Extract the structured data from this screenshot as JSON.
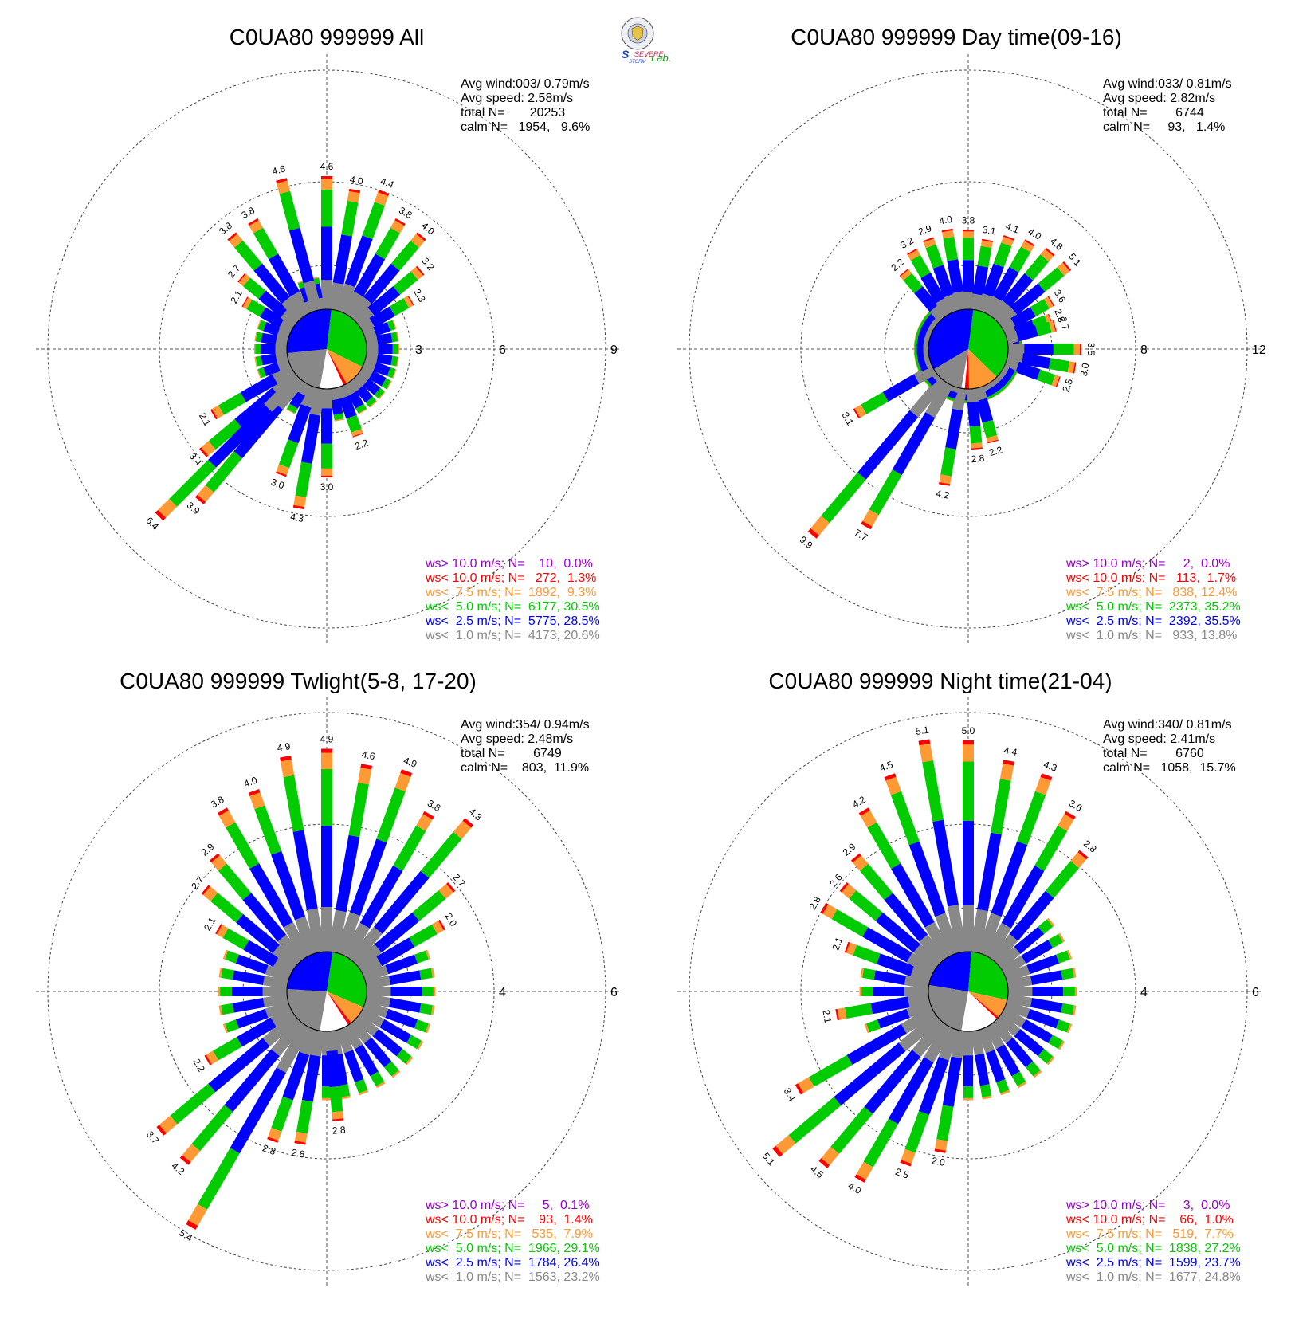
{
  "logo": {
    "top_text": "SEVERE",
    "bottom_text": "STORM",
    "lab_text": "Lab."
  },
  "colors": {
    "gt10": "#9900cc",
    "lt10": "#ff0000",
    "lt75": "#ff9933",
    "lt5": "#00cc00",
    "lt25": "#0000ff",
    "lt1": "#888888",
    "axis": "#333333"
  },
  "chart_data": [
    {
      "type": "wind-rose",
      "title": "C0UA80 999999 All",
      "rings": [
        3,
        6,
        9
      ],
      "info": [
        "Avg wind:003/ 0.79m/s",
        "Avg speed: 2.58m/s",
        "total N=       20253",
        "calm N=   1954,   9.6%"
      ],
      "legend": [
        {
          "label": "ws> 10.0 m/s; N=    10,  0.0%",
          "color": "gt10"
        },
        {
          "label": "ws< 10.0 m/s; N=   272,  1.3%",
          "color": "lt10"
        },
        {
          "label": "ws<  7.5 m/s; N=  1892,  9.3%",
          "color": "lt75"
        },
        {
          "label": "ws<  5.0 m/s; N=  6177, 30.5%",
          "color": "lt5"
        },
        {
          "label": "ws<  2.5 m/s; N=  5775, 28.5%",
          "color": "lt25"
        },
        {
          "label": "ws<  1.0 m/s; N=  4173, 20.6%",
          "color": "lt1"
        }
      ],
      "center_pie": [
        20.6,
        28.5,
        30.5,
        9.3,
        1.3,
        0.0
      ],
      "labeled_bars": [
        {
          "dir": 0,
          "len": 6.2,
          "label": "4.6"
        },
        {
          "dir": 10,
          "len": 5.8,
          "label": "4.0"
        },
        {
          "dir": 20,
          "len": 6.0,
          "label": "4.4"
        },
        {
          "dir": 30,
          "len": 5.3,
          "label": "3.8"
        },
        {
          "dir": 40,
          "len": 5.3,
          "label": "4.0"
        },
        {
          "dir": 50,
          "len": 4.4,
          "label": "3.2"
        },
        {
          "dir": 60,
          "len": 3.5,
          "label": "2.3"
        },
        {
          "dir": 160,
          "len": 3.3,
          "label": "2.2"
        },
        {
          "dir": 180,
          "len": 4.6,
          "label": "3.0"
        },
        {
          "dir": 190,
          "len": 5.8,
          "label": "4.3"
        },
        {
          "dir": 200,
          "len": 4.8,
          "label": "3.0"
        },
        {
          "dir": 220,
          "len": 7.1,
          "label": "3.9"
        },
        {
          "dir": 225,
          "len": 8.5,
          "label": "6.4"
        },
        {
          "dir": 230,
          "len": 5.8,
          "label": "3.4"
        },
        {
          "dir": 240,
          "len": 4.7,
          "label": "2.1"
        },
        {
          "dir": 300,
          "len": 3.4,
          "label": "2.1"
        },
        {
          "dir": 310,
          "len": 4.0,
          "label": "2.7"
        },
        {
          "dir": 320,
          "len": 5.3,
          "label": "3.8"
        },
        {
          "dir": 330,
          "len": 5.3,
          "label": "3.8"
        },
        {
          "dir": 345,
          "len": 6.3,
          "label": "4.6"
        }
      ]
    },
    {
      "type": "wind-rose",
      "title": "C0UA80 999999 Day time(09-16)",
      "rings": [
        4,
        8,
        12
      ],
      "info": [
        "Avg wind:033/ 0.81m/s",
        "Avg speed: 2.82m/s",
        "total N=        6744",
        "calm N=     93,   1.4%"
      ],
      "legend": [
        {
          "label": "ws> 10.0 m/s; N=     2,  0.0%",
          "color": "gt10"
        },
        {
          "label": "ws< 10.0 m/s; N=   113,  1.7%",
          "color": "lt10"
        },
        {
          "label": "ws<  7.5 m/s; N=   838, 12.4%",
          "color": "lt75"
        },
        {
          "label": "ws<  5.0 m/s; N=  2373, 35.2%",
          "color": "lt5"
        },
        {
          "label": "ws<  2.5 m/s; N=  2392, 35.5%",
          "color": "lt25"
        },
        {
          "label": "ws<  1.0 m/s; N=   933, 13.8%",
          "color": "lt1"
        }
      ],
      "center_pie": [
        13.8,
        35.5,
        35.2,
        12.4,
        1.7,
        0.0
      ],
      "labeled_bars": [
        {
          "dir": 0,
          "len": 5.7,
          "label": "3.8"
        },
        {
          "dir": 10,
          "len": 5.3,
          "label": "3.1"
        },
        {
          "dir": 20,
          "len": 5.7,
          "label": "4.1"
        },
        {
          "dir": 30,
          "len": 5.9,
          "label": "4.0"
        },
        {
          "dir": 40,
          "len": 6.1,
          "label": "4.8"
        },
        {
          "dir": 50,
          "len": 6.2,
          "label": "5.1"
        },
        {
          "dir": 60,
          "len": 4.6,
          "label": "3.6"
        },
        {
          "dir": 70,
          "len": 4.2,
          "label": "2.8"
        },
        {
          "dir": 75,
          "len": 4.3,
          "label": "2.7"
        },
        {
          "dir": 90,
          "len": 5.4,
          "label": "3.5"
        },
        {
          "dir": 100,
          "len": 5.2,
          "label": "3.0"
        },
        {
          "dir": 110,
          "len": 4.6,
          "label": "2.5"
        },
        {
          "dir": 165,
          "len": 4.6,
          "label": "2.2"
        },
        {
          "dir": 175,
          "len": 4.8,
          "label": "2.8"
        },
        {
          "dir": 190,
          "len": 6.6,
          "label": "4.2"
        },
        {
          "dir": 210,
          "len": 9.8,
          "label": "7.7"
        },
        {
          "dir": 220,
          "len": 11.6,
          "label": "9.9"
        },
        {
          "dir": 240,
          "len": 6.2,
          "label": "3.1"
        },
        {
          "dir": 320,
          "len": 4.8,
          "label": "2.2"
        },
        {
          "dir": 330,
          "len": 5.4,
          "label": "3.2"
        },
        {
          "dir": 340,
          "len": 5.6,
          "label": "2.9"
        },
        {
          "dir": 350,
          "len": 5.8,
          "label": "4.0"
        }
      ]
    },
    {
      "type": "wind-rose",
      "title": "C0UA80 999999 Twlight(5-8, 17-20)",
      "rings": [
        2,
        4,
        6
      ],
      "info": [
        "Avg wind:354/ 0.94m/s",
        "Avg speed: 2.48m/s",
        "total N=        6749",
        "calm N=    803,  11.9%"
      ],
      "legend": [
        {
          "label": "ws> 10.0 m/s; N=     5,  0.1%",
          "color": "gt10"
        },
        {
          "label": "ws< 10.0 m/s; N=    93,  1.4%",
          "color": "lt10"
        },
        {
          "label": "ws<  7.5 m/s; N=   535,  7.9%",
          "color": "lt75"
        },
        {
          "label": "ws<  5.0 m/s; N=  1966, 29.1%",
          "color": "lt5"
        },
        {
          "label": "ws<  2.5 m/s; N=  1784, 26.4%",
          "color": "lt25"
        },
        {
          "label": "ws<  1.0 m/s; N=  1563, 23.2%",
          "color": "lt1"
        }
      ],
      "center_pie": [
        23.2,
        26.4,
        29.1,
        7.9,
        1.4,
        0.1
      ],
      "labeled_bars": [
        {
          "dir": 0,
          "len": 5.8,
          "label": "4.9"
        },
        {
          "dir": 10,
          "len": 5.5,
          "label": "4.6"
        },
        {
          "dir": 20,
          "len": 5.6,
          "label": "4.9"
        },
        {
          "dir": 30,
          "len": 4.9,
          "label": "3.8"
        },
        {
          "dir": 40,
          "len": 5.3,
          "label": "4.3"
        },
        {
          "dir": 50,
          "len": 3.9,
          "label": "2.7"
        },
        {
          "dir": 60,
          "len": 3.2,
          "label": "2.0"
        },
        {
          "dir": 175,
          "len": 3.1,
          "label": "2.8"
        },
        {
          "dir": 190,
          "len": 3.7,
          "label": "2.8"
        },
        {
          "dir": 200,
          "len": 3.8,
          "label": "2.8"
        },
        {
          "dir": 210,
          "len": 6.5,
          "label": "5.4"
        },
        {
          "dir": 220,
          "len": 5.3,
          "label": "4.2"
        },
        {
          "dir": 230,
          "len": 5.2,
          "label": "3.7"
        },
        {
          "dir": 240,
          "len": 3.3,
          "label": "2.2"
        },
        {
          "dir": 300,
          "len": 3.0,
          "label": "2.1"
        },
        {
          "dir": 310,
          "len": 3.8,
          "label": "2.7"
        },
        {
          "dir": 320,
          "len": 4.2,
          "label": "2.9"
        },
        {
          "dir": 330,
          "len": 5.0,
          "label": "3.8"
        },
        {
          "dir": 340,
          "len": 5.1,
          "label": "4.0"
        },
        {
          "dir": 350,
          "len": 5.7,
          "label": "4.9"
        }
      ]
    },
    {
      "type": "wind-rose",
      "title": "C0UA80 999999 Night time(21-04)",
      "rings": [
        2,
        4,
        6
      ],
      "info": [
        "Avg wind:340/ 0.81m/s",
        "Avg speed: 2.41m/s",
        "total N=        6760",
        "calm N=   1058,  15.7%"
      ],
      "legend": [
        {
          "label": "ws> 10.0 m/s; N=     3,  0.0%",
          "color": "gt10"
        },
        {
          "label": "ws< 10.0 m/s; N=    66,  1.0%",
          "color": "lt10"
        },
        {
          "label": "ws<  7.5 m/s; N=   519,  7.7%",
          "color": "lt75"
        },
        {
          "label": "ws<  5.0 m/s; N=  1838, 27.2%",
          "color": "lt5"
        },
        {
          "label": "ws<  2.5 m/s; N=  1599, 23.7%",
          "color": "lt25"
        },
        {
          "label": "ws<  1.0 m/s; N=  1677, 24.8%",
          "color": "lt1"
        }
      ],
      "center_pie": [
        24.8,
        23.7,
        27.2,
        7.7,
        1.0,
        0.0
      ],
      "labeled_bars": [
        {
          "dir": 0,
          "len": 6.0,
          "label": "5.0"
        },
        {
          "dir": 10,
          "len": 5.6,
          "label": "4.4"
        },
        {
          "dir": 20,
          "len": 5.5,
          "label": "4.3"
        },
        {
          "dir": 30,
          "len": 4.9,
          "label": "3.6"
        },
        {
          "dir": 40,
          "len": 4.3,
          "label": "2.8"
        },
        {
          "dir": 190,
          "len": 3.9,
          "label": "2.0"
        },
        {
          "dir": 200,
          "len": 4.4,
          "label": "2.5"
        },
        {
          "dir": 210,
          "len": 5.2,
          "label": "4.0"
        },
        {
          "dir": 220,
          "len": 5.4,
          "label": "4.5"
        },
        {
          "dir": 230,
          "len": 6.0,
          "label": "5.1"
        },
        {
          "dir": 240,
          "len": 4.7,
          "label": "3.4"
        },
        {
          "dir": 260,
          "len": 3.2,
          "label": "2.1"
        },
        {
          "dir": 290,
          "len": 3.1,
          "label": "2.1"
        },
        {
          "dir": 300,
          "len": 4.0,
          "label": "2.8"
        },
        {
          "dir": 310,
          "len": 3.9,
          "label": "2.6"
        },
        {
          "dir": 320,
          "len": 4.2,
          "label": "2.9"
        },
        {
          "dir": 330,
          "len": 5.0,
          "label": "4.2"
        },
        {
          "dir": 340,
          "len": 5.5,
          "label": "4.5"
        },
        {
          "dir": 350,
          "len": 6.1,
          "label": "5.1"
        }
      ]
    }
  ]
}
